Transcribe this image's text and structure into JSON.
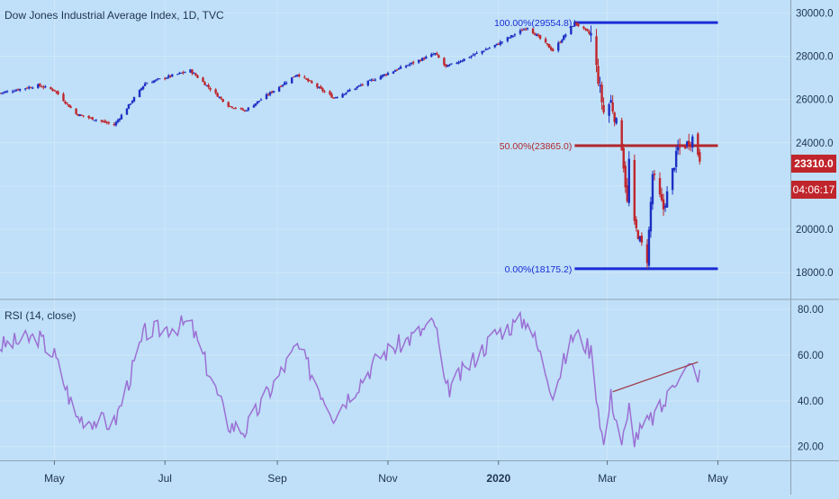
{
  "chart_data": [
    {
      "type": "candlestick",
      "title": "Dow Jones Industrial Average Index, 1D, TVC",
      "ylim": [
        16800,
        30600
      ],
      "y_ticks": [
        18000,
        20000,
        22000,
        24000,
        26000,
        28000,
        30000
      ],
      "y_tick_labels": [
        "18000.0",
        "20000.0",
        "22000.0",
        "24000.0",
        "26000.0",
        "28000.0",
        "30000.0"
      ],
      "x_ticks": [
        {
          "label": "May",
          "date": "2019-05-01"
        },
        {
          "label": "Jul",
          "date": "2019-07-01"
        },
        {
          "label": "Sep",
          "date": "2019-09-01"
        },
        {
          "label": "Nov",
          "date": "2019-11-01"
        },
        {
          "label": "2020",
          "date": "2020-01-01"
        },
        {
          "label": "Mar",
          "date": "2020-03-01"
        },
        {
          "label": "May",
          "date": "2020-05-01"
        }
      ],
      "x_range": [
        "2019-04-01",
        "2020-06-10"
      ],
      "up_color": "#1d2fc4",
      "down_color": "#c0252c",
      "close_anchors": [
        [
          "2019-04-01",
          26300
        ],
        [
          "2019-04-22",
          26650
        ],
        [
          "2019-05-01",
          26430
        ],
        [
          "2019-05-13",
          25330
        ],
        [
          "2019-06-03",
          24820
        ],
        [
          "2019-06-20",
          26750
        ],
        [
          "2019-07-15",
          27340
        ],
        [
          "2019-08-05",
          25720
        ],
        [
          "2019-08-14",
          25480
        ],
        [
          "2019-09-12",
          27180
        ],
        [
          "2019-10-02",
          26080
        ],
        [
          "2019-10-28",
          27080
        ],
        [
          "2019-11-27",
          28120
        ],
        [
          "2019-12-03",
          27500
        ],
        [
          "2019-12-31",
          28540
        ],
        [
          "2020-01-17",
          29350
        ],
        [
          "2020-01-31",
          28260
        ],
        [
          "2020-02-12",
          29550
        ],
        [
          "2020-02-21",
          28990
        ],
        [
          "2020-02-28",
          25410
        ],
        [
          "2020-03-03",
          25920
        ],
        [
          "2020-03-09",
          23850
        ],
        [
          "2020-03-12",
          21200
        ],
        [
          "2020-03-13",
          23180
        ],
        [
          "2020-03-16",
          20190
        ],
        [
          "2020-03-23",
          18590
        ],
        [
          "2020-03-26",
          22550
        ],
        [
          "2020-04-01",
          20940
        ],
        [
          "2020-04-09",
          23720
        ],
        [
          "2020-04-14",
          23950
        ],
        [
          "2020-04-17",
          24240
        ],
        [
          "2020-04-21",
          23310
        ]
      ],
      "fibonacci": [
        {
          "label": "100.00%(29554.8)",
          "value": 29554.8,
          "color": "#1a2bd6"
        },
        {
          "label": "50.00%(23865.0)",
          "value": 23865.0,
          "color": "#b0272d"
        },
        {
          "label": "0.00%(18175.2)",
          "value": 18175.2,
          "color": "#1a2bd6"
        }
      ],
      "fib_range": [
        "2020-02-12",
        "2020-05-01"
      ],
      "last_price_label": "23310.0",
      "countdown_label": "04:06:17"
    },
    {
      "type": "line",
      "title": "RSI (14, close)",
      "ylim": [
        14,
        84
      ],
      "y_ticks": [
        20,
        40,
        60,
        80
      ],
      "y_tick_labels": [
        "20.00",
        "40.00",
        "60.00",
        "80.00"
      ],
      "color": "#9b6fd4",
      "anchors": [
        [
          "2019-04-01",
          64
        ],
        [
          "2019-04-22",
          68
        ],
        [
          "2019-05-01",
          60
        ],
        [
          "2019-05-13",
          33
        ],
        [
          "2019-06-03",
          30
        ],
        [
          "2019-06-20",
          70
        ],
        [
          "2019-07-15",
          74
        ],
        [
          "2019-08-05",
          30
        ],
        [
          "2019-08-14",
          27
        ],
        [
          "2019-09-12",
          64
        ],
        [
          "2019-10-02",
          34
        ],
        [
          "2019-10-28",
          60
        ],
        [
          "2019-11-27",
          74
        ],
        [
          "2019-12-03",
          44
        ],
        [
          "2019-12-31",
          70
        ],
        [
          "2020-01-17",
          76
        ],
        [
          "2020-01-31",
          44
        ],
        [
          "2020-02-12",
          70
        ],
        [
          "2020-02-21",
          62
        ],
        [
          "2020-02-28",
          20
        ],
        [
          "2020-03-03",
          42
        ],
        [
          "2020-03-09",
          22
        ],
        [
          "2020-03-12",
          30
        ],
        [
          "2020-03-13",
          38
        ],
        [
          "2020-03-16",
          24
        ],
        [
          "2020-03-23",
          30
        ],
        [
          "2020-04-01",
          38
        ],
        [
          "2020-04-09",
          52
        ],
        [
          "2020-04-14",
          54
        ],
        [
          "2020-04-17",
          55
        ],
        [
          "2020-04-21",
          51
        ]
      ],
      "trendline": {
        "from": [
          "2020-03-04",
          44
        ],
        "to": [
          "2020-04-20",
          57
        ],
        "color": "#a0404f"
      }
    }
  ]
}
